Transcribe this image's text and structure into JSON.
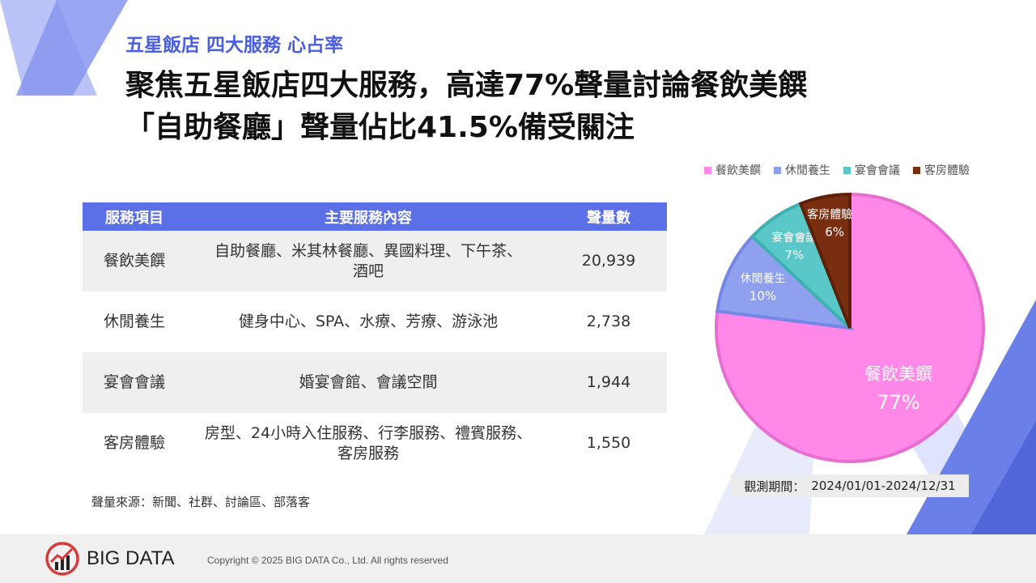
{
  "header": {
    "subtitle": "五星飯店 四大服務 心占率",
    "headline_line1": "聚焦五星飯店四大服務，高達77%聲量討論餐飲美饌",
    "headline_line2": "「自助餐廳」聲量佔比41.5%備受關注"
  },
  "table": {
    "headers": [
      "服務項目",
      "主要服務內容",
      "聲量數"
    ],
    "rows": [
      {
        "item": "餐飲美饌",
        "content_line1": "自助餐廳、米其林餐廳、異國料理、下午茶、",
        "content_line2": "酒吧",
        "volume": "20,939"
      },
      {
        "item": "休閒養生",
        "content_line1": "健身中心、SPA、水療、芳療、游泳池",
        "content_line2": "",
        "volume": "2,738"
      },
      {
        "item": "宴會會議",
        "content_line1": "婚宴會館、會議空間",
        "content_line2": "",
        "volume": "1,944"
      },
      {
        "item": "客房體驗",
        "content_line1": "房型、24小時入住服務、行李服務、禮賓服務、",
        "content_line2": "客房服務",
        "volume": "1,550"
      }
    ]
  },
  "source_note": "聲量來源：新聞、社群、討論區、部落客",
  "period": {
    "label": "觀測期間：",
    "value": "2024/01/01-2024/12/31"
  },
  "footer": {
    "logo_text": "BIG DATA",
    "copyright": "Copyright © 2025 BIG DATA Co., Ltd. All rights reserved"
  },
  "colors": {
    "accent": "#5b6fe6",
    "pink": "#ff88e8",
    "blue": "#8fa0ee",
    "teal": "#5ac8c8",
    "brown": "#7a2e10",
    "logo_red": "#d63a3a"
  },
  "chart_data": {
    "type": "pie",
    "legend_position": "top",
    "slices": [
      {
        "name": "餐飲美饌",
        "value": 77,
        "label": "77%",
        "color": "#ff88e8"
      },
      {
        "name": "休閒養生",
        "value": 10,
        "label": "10%",
        "color": "#8fa0ee"
      },
      {
        "name": "宴會會議",
        "value": 7,
        "label": "7%",
        "color": "#5ac8c8"
      },
      {
        "name": "客房體驗",
        "value": 6,
        "label": "6%",
        "color": "#7a2e10"
      }
    ]
  }
}
